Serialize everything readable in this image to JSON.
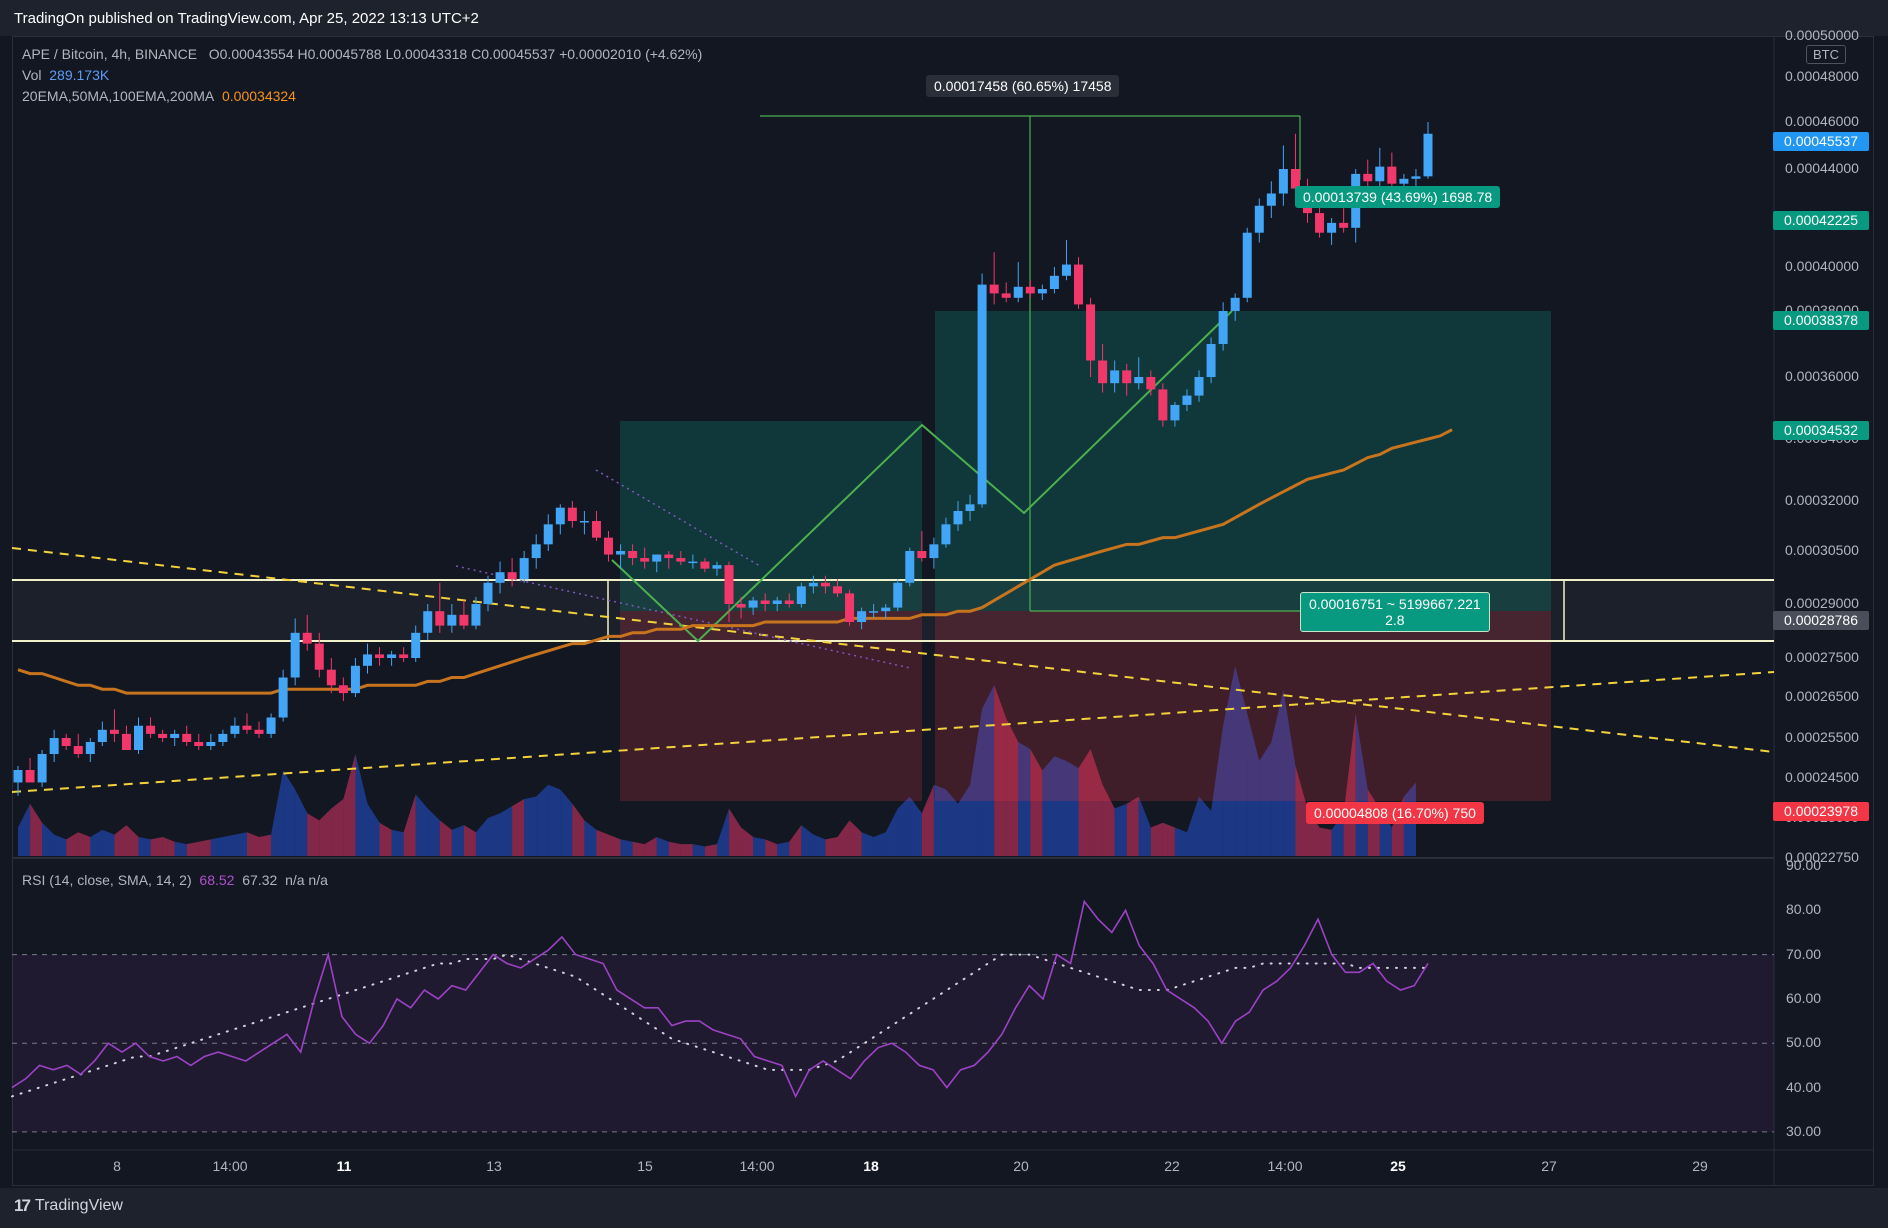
{
  "header": {
    "published": "TradingOn published on TradingView.com, Apr 25, 2022 13:13 UTC+2"
  },
  "legend": {
    "symbol": "APE / Bitcoin, 4h, BINANCE",
    "ohlc": "O0.00043554  H0.00045788  L0.00043318  C0.00045537  +0.00002010 (+4.62%)",
    "vol_label": "Vol",
    "vol_value": "289.173K",
    "ma_label": "20EMA,50MA,100EMA,200MA",
    "ma_value": "0.00034324",
    "rsi_label": "RSI (14, close, SMA, 14, 2)",
    "rsi_value": "68.52",
    "rsi_sma": "67.32",
    "rsi_extra": "n/a  n/a"
  },
  "price_axis": {
    "unit": "BTC",
    "labels": [
      "0.00050000",
      "0.00048000",
      "0.00046000",
      "0.00044000",
      "0.00040000",
      "0.00038000",
      "0.00036000",
      "0.00034000",
      "0.00032000",
      "0.00030500",
      "0.00029000",
      "0.00027500",
      "0.00026500",
      "0.00025500",
      "0.00024500",
      "0.00023600",
      "0.00022750"
    ],
    "tags": [
      {
        "text": "0.00045537",
        "color": "#2196f3"
      },
      {
        "text": "0.00042225",
        "color": "#089981"
      },
      {
        "text": "0.00038378",
        "color": "#089981"
      },
      {
        "text": "0.00034532",
        "color": "#089981"
      },
      {
        "text": "0.00028786",
        "color": "#4a4e5a"
      },
      {
        "text": "0.00023978",
        "color": "#f23645"
      }
    ]
  },
  "rsi_axis": {
    "labels": [
      "90.00",
      "80.00",
      "70.00",
      "60.00",
      "50.00",
      "40.00",
      "30.00"
    ]
  },
  "time_axis": {
    "labels": [
      "8",
      "14:00",
      "11",
      "13",
      "15",
      "14:00",
      "18",
      "20",
      "22",
      "14:00",
      "25",
      "27",
      "29"
    ]
  },
  "annotations": {
    "measure_top": "0.00017458 (60.65%) 17458",
    "target_label": "0.00013739 (43.69%) 1698.78",
    "range_label_1": "0.00016751 ~ 5199667.221",
    "range_label_2": "2.8",
    "stop_label": "0.00004808 (16.70%) 750"
  },
  "colors": {
    "up": "#42a5f5",
    "down": "#f2386b",
    "ma": "#c8741e",
    "rsi": "#9c42c5",
    "pattern": "#4caf50",
    "trend": "#f3d33b"
  },
  "footer": {
    "brand": "TradingView"
  },
  "chart_data": {
    "type": "candlestick",
    "symbol": "APE / Bitcoin",
    "timeframe": "4h",
    "ohlc": [
      [
        0.000244,
        0.000248,
        0.000241,
        0.000247
      ],
      [
        0.000247,
        0.00025,
        0.000245,
        0.000244
      ],
      [
        0.000244,
        0.000252,
        0.000243,
        0.000251
      ],
      [
        0.000251,
        0.000257,
        0.000249,
        0.000255
      ],
      [
        0.000255,
        0.000256,
        0.000252,
        0.000253
      ],
      [
        0.000253,
        0.000256,
        0.00025,
        0.000251
      ],
      [
        0.000251,
        0.000255,
        0.000249,
        0.000254
      ],
      [
        0.000254,
        0.000259,
        0.000253,
        0.000257
      ],
      [
        0.000257,
        0.000262,
        0.000254,
        0.000256
      ],
      [
        0.000256,
        0.000258,
        0.000252,
        0.000252
      ],
      [
        0.000252,
        0.00026,
        0.000251,
        0.000258
      ],
      [
        0.000258,
        0.00026,
        0.000255,
        0.000256
      ],
      [
        0.000256,
        0.000257,
        0.000254,
        0.000255
      ],
      [
        0.000255,
        0.000257,
        0.000253,
        0.000256
      ],
      [
        0.000256,
        0.000258,
        0.000253,
        0.000254
      ],
      [
        0.000254,
        0.000256,
        0.000252,
        0.000253
      ],
      [
        0.000253,
        0.000256,
        0.000252,
        0.000254
      ],
      [
        0.000254,
        0.000257,
        0.000253,
        0.000256
      ],
      [
        0.000256,
        0.00026,
        0.000255,
        0.000258
      ],
      [
        0.000258,
        0.000261,
        0.000256,
        0.000257
      ],
      [
        0.000257,
        0.000259,
        0.000255,
        0.000256
      ],
      [
        0.000256,
        0.000261,
        0.000255,
        0.00026
      ],
      [
        0.00026,
        0.000272,
        0.000259,
        0.00027
      ],
      [
        0.00027,
        0.000286,
        0.000268,
        0.000282
      ],
      [
        0.000282,
        0.000287,
        0.000277,
        0.000279
      ],
      [
        0.000279,
        0.000282,
        0.00027,
        0.000272
      ],
      [
        0.000272,
        0.000275,
        0.000266,
        0.000268
      ],
      [
        0.000268,
        0.00027,
        0.000264,
        0.000266
      ],
      [
        0.000266,
        0.000275,
        0.000265,
        0.000273
      ],
      [
        0.000273,
        0.000279,
        0.000271,
        0.000276
      ],
      [
        0.000276,
        0.000278,
        0.000273,
        0.000275
      ],
      [
        0.000275,
        0.000277,
        0.000273,
        0.000276
      ],
      [
        0.000276,
        0.000278,
        0.000274,
        0.000275
      ],
      [
        0.000275,
        0.000284,
        0.000274,
        0.000282
      ],
      [
        0.000282,
        0.00029,
        0.00028,
        0.000288
      ],
      [
        0.000288,
        0.000296,
        0.000282,
        0.000284
      ],
      [
        0.000284,
        0.00029,
        0.000282,
        0.000287
      ],
      [
        0.000287,
        0.000291,
        0.000283,
        0.000284
      ],
      [
        0.000284,
        0.000292,
        0.000283,
        0.00029
      ],
      [
        0.00029,
        0.000298,
        0.000288,
        0.000296
      ],
      [
        0.000296,
        0.000302,
        0.000293,
        0.000299
      ],
      [
        0.000299,
        0.000303,
        0.000295,
        0.000297
      ],
      [
        0.000297,
        0.000305,
        0.000296,
        0.000303
      ],
      [
        0.000303,
        0.00031,
        0.0003,
        0.000307
      ],
      [
        0.000307,
        0.000316,
        0.000305,
        0.000313
      ],
      [
        0.000313,
        0.000319,
        0.00031,
        0.000318
      ],
      [
        0.000318,
        0.00032,
        0.000312,
        0.000314
      ],
      [
        0.000314,
        0.000317,
        0.00031,
        0.000314
      ],
      [
        0.000314,
        0.000317,
        0.000308,
        0.000309
      ],
      [
        0.000309,
        0.000311,
        0.000302,
        0.000304
      ],
      [
        0.000304,
        0.000307,
        0.0003,
        0.000305
      ],
      [
        0.000305,
        0.000307,
        0.000301,
        0.000303
      ],
      [
        0.000303,
        0.000306,
        0.0003,
        0.000302
      ],
      [
        0.000302,
        0.000304,
        0.000299,
        0.000304
      ],
      [
        0.000304,
        0.000305,
        0.0003,
        0.000303
      ],
      [
        0.000303,
        0.000305,
        0.000301,
        0.000302
      ],
      [
        0.000302,
        0.000304,
        0.0003,
        0.000302
      ],
      [
        0.000302,
        0.000303,
        0.000299,
        0.0003
      ],
      [
        0.0003,
        0.000302,
        0.000298,
        0.000301
      ],
      [
        0.000301,
        0.000302,
        0.000285,
        0.00029
      ],
      [
        0.00029,
        0.000292,
        0.000286,
        0.000289
      ],
      [
        0.000289,
        0.000292,
        0.000287,
        0.000291
      ],
      [
        0.000291,
        0.000293,
        0.000288,
        0.00029
      ],
      [
        0.00029,
        0.000292,
        0.000288,
        0.000291
      ],
      [
        0.000291,
        0.000293,
        0.000289,
        0.00029
      ],
      [
        0.00029,
        0.000296,
        0.000289,
        0.000295
      ],
      [
        0.000295,
        0.000298,
        0.000293,
        0.000296
      ],
      [
        0.000296,
        0.000298,
        0.000293,
        0.000295
      ],
      [
        0.000295,
        0.000297,
        0.000292,
        0.000293
      ],
      [
        0.000293,
        0.000294,
        0.000284,
        0.000285
      ],
      [
        0.000285,
        0.000289,
        0.000283,
        0.000288
      ],
      [
        0.000288,
        0.00029,
        0.000286,
        0.000288
      ],
      [
        0.000288,
        0.00029,
        0.000286,
        0.000289
      ],
      [
        0.000289,
        0.000297,
        0.000288,
        0.000296
      ],
      [
        0.000296,
        0.000306,
        0.000295,
        0.000305
      ],
      [
        0.000305,
        0.000311,
        0.000302,
        0.000303
      ],
      [
        0.000303,
        0.000309,
        0.0003,
        0.000307
      ],
      [
        0.000307,
        0.000315,
        0.000306,
        0.000313
      ],
      [
        0.000313,
        0.00032,
        0.000311,
        0.000317
      ],
      [
        0.000317,
        0.000322,
        0.000314,
        0.000319
      ],
      [
        0.000319,
        0.000397,
        0.000318,
        0.000392
      ],
      [
        0.000392,
        0.000406,
        0.000383,
        0.000388
      ],
      [
        0.000388,
        0.000393,
        0.000384,
        0.000386
      ],
      [
        0.000386,
        0.000402,
        0.000384,
        0.000391
      ],
      [
        0.000391,
        0.000394,
        0.000386,
        0.000388
      ],
      [
        0.000388,
        0.000392,
        0.000385,
        0.00039
      ],
      [
        0.00039,
        0.0004,
        0.000388,
        0.000396
      ],
      [
        0.000396,
        0.000411,
        0.000394,
        0.000401
      ],
      [
        0.000401,
        0.000404,
        0.000381,
        0.000383
      ],
      [
        0.000383,
        0.000386,
        0.00036,
        0.000365
      ],
      [
        0.000365,
        0.00037,
        0.000355,
        0.000358
      ],
      [
        0.000358,
        0.000365,
        0.000355,
        0.000362
      ],
      [
        0.000362,
        0.000364,
        0.000354,
        0.000358
      ],
      [
        0.000358,
        0.000366,
        0.000356,
        0.00036
      ],
      [
        0.00036,
        0.000362,
        0.000354,
        0.000356
      ],
      [
        0.000356,
        0.000358,
        0.000344,
        0.000346
      ],
      [
        0.000346,
        0.000352,
        0.000344,
        0.000351
      ],
      [
        0.000351,
        0.000356,
        0.000349,
        0.000354
      ],
      [
        0.000354,
        0.000362,
        0.000352,
        0.00036
      ],
      [
        0.00036,
        0.000372,
        0.000358,
        0.00037
      ],
      [
        0.00037,
        0.000384,
        0.000368,
        0.00038
      ],
      [
        0.00038,
        0.000388,
        0.000377,
        0.000386
      ],
      [
        0.000386,
        0.000416,
        0.000384,
        0.000414
      ],
      [
        0.000414,
        0.000428,
        0.00041,
        0.000425
      ],
      [
        0.000425,
        0.000435,
        0.00042,
        0.00043
      ],
      [
        0.00043,
        0.00045,
        0.000425,
        0.00044
      ],
      [
        0.00044,
        0.000455,
        0.000428,
        0.000432
      ],
      [
        0.000432,
        0.000436,
        0.000418,
        0.000422
      ],
      [
        0.000422,
        0.000427,
        0.000412,
        0.000414
      ],
      [
        0.000414,
        0.00042,
        0.000409,
        0.000418
      ],
      [
        0.000418,
        0.000424,
        0.000414,
        0.000416
      ],
      [
        0.000416,
        0.00044,
        0.00041,
        0.000438
      ],
      [
        0.000438,
        0.000444,
        0.000428,
        0.000435
      ],
      [
        0.000435,
        0.000449,
        0.00043,
        0.000441
      ],
      [
        0.000441,
        0.000447,
        0.000428,
        0.000434
      ],
      [
        0.000434,
        0.000438,
        0.000427,
        0.000436
      ],
      [
        0.000436,
        0.00044,
        0.000432,
        0.000437
      ],
      [
        0.000437,
        0.00046,
        0.000436,
        0.000455
      ]
    ],
    "ma": [
      0.000272,
      0.000271,
      0.000271,
      0.00027,
      0.000269,
      0.000268,
      0.000268,
      0.000267,
      0.000267,
      0.000266,
      0.000266,
      0.000266,
      0.000266,
      0.000266,
      0.000266,
      0.000266,
      0.000266,
      0.000266,
      0.000266,
      0.000266,
      0.000266,
      0.000266,
      0.000267,
      0.000267,
      0.000267,
      0.000267,
      0.000267,
      0.000267,
      0.000267,
      0.000268,
      0.000268,
      0.000268,
      0.000268,
      0.000268,
      0.000269,
      0.000269,
      0.00027,
      0.00027,
      0.000271,
      0.000272,
      0.000273,
      0.000274,
      0.000275,
      0.000276,
      0.000277,
      0.000278,
      0.000279,
      0.000279,
      0.00028,
      0.000281,
      0.000281,
      0.000282,
      0.000282,
      0.000283,
      0.000283,
      0.000283,
      0.000284,
      0.000284,
      0.000284,
      0.000284,
      0.000284,
      0.000284,
      0.000285,
      0.000285,
      0.000285,
      0.000285,
      0.000285,
      0.000285,
      0.000285,
      0.000286,
      0.000286,
      0.000286,
      0.000286,
      0.000286,
      0.000286,
      0.000287,
      0.000287,
      0.000287,
      0.000288,
      0.000288,
      0.000289,
      0.000291,
      0.000293,
      0.000295,
      0.000297,
      0.000299,
      0.000301,
      0.000302,
      0.000303,
      0.000304,
      0.000305,
      0.000306,
      0.000307,
      0.000307,
      0.000308,
      0.000309,
      0.000309,
      0.00031,
      0.000311,
      0.000312,
      0.000313,
      0.000315,
      0.000317,
      0.000319,
      0.000321,
      0.000323,
      0.000325,
      0.000327,
      0.000328,
      0.000329,
      0.00033,
      0.000332,
      0.000334,
      0.000335,
      0.000337,
      0.000338,
      0.000339,
      0.00034,
      0.000341,
      0.000343
    ],
    "volume": [
      12,
      22,
      14,
      9,
      7,
      10,
      8,
      11,
      9,
      13,
      8,
      7,
      8,
      6,
      5,
      6,
      7,
      8,
      9,
      10,
      8,
      9,
      36,
      28,
      18,
      15,
      20,
      24,
      43,
      22,
      14,
      11,
      10,
      26,
      20,
      15,
      11,
      13,
      10,
      16,
      18,
      21,
      24,
      25,
      30,
      28,
      22,
      15,
      11,
      9,
      7,
      6,
      5,
      8,
      6,
      5,
      5,
      4,
      5,
      20,
      12,
      8,
      7,
      5,
      6,
      13,
      9,
      7,
      8,
      15,
      10,
      8,
      10,
      20,
      25,
      18,
      30,
      28,
      22,
      30,
      62,
      72,
      58,
      48,
      45,
      36,
      42,
      40,
      37,
      45,
      30,
      20,
      22,
      25,
      12,
      14,
      12,
      10,
      25,
      19,
      55,
      80,
      60,
      40,
      48,
      70,
      38,
      20,
      12,
      11,
      18,
      60,
      28,
      20,
      12,
      25,
      31
    ],
    "rsi": [
      40,
      42,
      45,
      44,
      45,
      43,
      46,
      50,
      48,
      50,
      47,
      46,
      47,
      45,
      47,
      48,
      47,
      46,
      48,
      50,
      52,
      48,
      60,
      70,
      56,
      52,
      50,
      54,
      60,
      58,
      62,
      60,
      63,
      62,
      66,
      70,
      68,
      67,
      69,
      71,
      74,
      70,
      69,
      68,
      62,
      60,
      58,
      58,
      54,
      55,
      55,
      53,
      52,
      51,
      47,
      46,
      45,
      38,
      44,
      46,
      44,
      42,
      46,
      49,
      50,
      48,
      45,
      44,
      40,
      44,
      45,
      48,
      52,
      58,
      63,
      60,
      70,
      68,
      82,
      78,
      75,
      80,
      72,
      68,
      62,
      60,
      58,
      55,
      50,
      55,
      57,
      62,
      64,
      67,
      72,
      78,
      70,
      66,
      66,
      68,
      64,
      62,
      63,
      68
    ],
    "rsi_sma": [
      38,
      39,
      40,
      41,
      42,
      43,
      44,
      45,
      46,
      47,
      47,
      48,
      49,
      50,
      51,
      52,
      53,
      54,
      55,
      56,
      57,
      58,
      59,
      60,
      61,
      62,
      63,
      64,
      65,
      66,
      67,
      68,
      68,
      69,
      69,
      69,
      70,
      69,
      68,
      67,
      66,
      65,
      63,
      61,
      59,
      57,
      55,
      53,
      51,
      50,
      49,
      48,
      47,
      46,
      45,
      44,
      44,
      44,
      44,
      45,
      46,
      48,
      50,
      52,
      54,
      56,
      58,
      60,
      62,
      64,
      66,
      68,
      70,
      70,
      70,
      69,
      68,
      67,
      66,
      65,
      64,
      63,
      62,
      62,
      62,
      63,
      64,
      65,
      66,
      67,
      67,
      68,
      68,
      68,
      68,
      68,
      68,
      68,
      67,
      67,
      67,
      67,
      67,
      67
    ],
    "price_range": [
      0.0002275,
      0.0005
    ],
    "rsi_range": [
      25,
      90
    ]
  }
}
